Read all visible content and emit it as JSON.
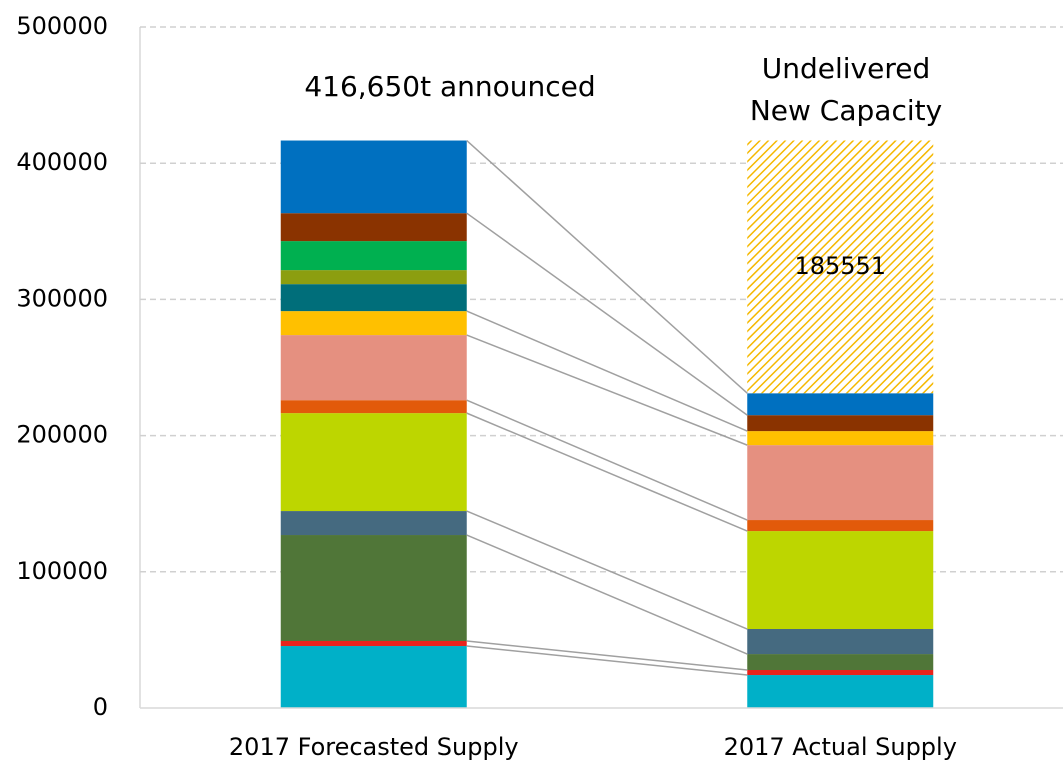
{
  "chart_data": {
    "type": "stacked_bar",
    "categories": [
      "2017 Forecasted Supply",
      "2017 Actual Supply"
    ],
    "series": [
      {
        "color": "#00b0c8",
        "values": [
          45500,
          24200
        ]
      },
      {
        "color": "#e8241c",
        "values": [
          3700,
          3700
        ]
      },
      {
        "color": "#507638",
        "values": [
          77800,
          11700
        ]
      },
      {
        "color": "#456a80",
        "values": [
          17600,
          18400
        ]
      },
      {
        "color": "#bdd600",
        "values": [
          71900,
          71900
        ]
      },
      {
        "color": "#e25a0a",
        "values": [
          9500,
          8100
        ]
      },
      {
        "color": "#e59080",
        "values": [
          47800,
          55000
        ]
      },
      {
        "color": "#ffc000",
        "values": [
          17600,
          10300
        ]
      },
      {
        "color": "#006e7a",
        "values": [
          19800,
          0
        ]
      },
      {
        "color": "#8c9e10",
        "values": [
          10300,
          0
        ]
      },
      {
        "color": "#00b050",
        "values": [
          21300,
          0
        ]
      },
      {
        "color": "#8a3300",
        "values": [
          20500,
          11700
        ]
      },
      {
        "color": "#0070c0",
        "values": [
          53350,
          16100
        ]
      },
      {
        "color": "#f5b800",
        "pattern": "hatch",
        "values": [
          0,
          185551
        ],
        "show_value_labels": true
      }
    ],
    "annotations": [
      "416,650t announced"
    ],
    "undelivered_label": [
      "Undelivered",
      "New Capacity"
    ],
    "connectors": true,
    "ylim": [
      0,
      500000
    ],
    "yticks": [
      0,
      100000,
      200000,
      300000,
      400000,
      500000
    ],
    "grid": true
  }
}
